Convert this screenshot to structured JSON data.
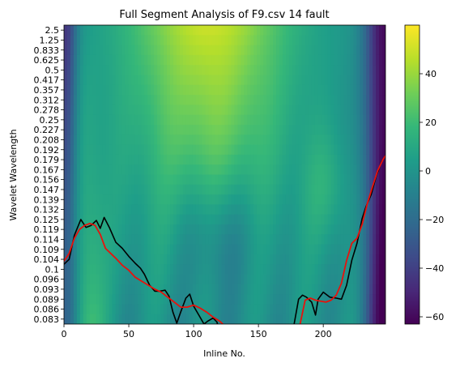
{
  "chart_data": {
    "type": "heatmap",
    "title": "Full Segment Analysis of F9.csv 14 fault",
    "xlabel": "Inline No.",
    "ylabel": "Wavelet Wavelength",
    "xlim": [
      0,
      248
    ],
    "x_ticks": [
      0,
      50,
      100,
      150,
      200
    ],
    "y_tick_labels": [
      "2.5",
      "1.25",
      "0.833",
      "0.625",
      "0.5",
      "0.417",
      "0.357",
      "0.312",
      "0.278",
      "0.25",
      "0.227",
      "0.208",
      "0.192",
      "0.179",
      "0.167",
      "0.156",
      "0.147",
      "0.139",
      "0.132",
      "0.125",
      "0.119",
      "0.114",
      "0.109",
      "0.104",
      "0.1",
      "0.096",
      "0.093",
      "0.089",
      "0.086",
      "0.083"
    ],
    "colorbar": {
      "ticks": [
        40,
        20,
        0,
        -20,
        -40,
        -60
      ],
      "range": [
        -63,
        60
      ],
      "colormap": "viridis"
    },
    "colors": {
      "black_line": "#000000",
      "red_line": "#e8120c"
    },
    "series": [
      {
        "type": "line",
        "color": "#000000",
        "x": [
          0,
          4,
          8,
          13,
          17,
          21,
          25,
          28,
          31,
          35,
          40,
          45,
          50,
          55,
          59,
          62,
          66,
          70,
          74,
          78,
          81,
          84,
          87,
          90,
          94,
          97,
          100,
          104,
          108,
          111,
          115,
          118,
          121,
          125,
          130,
          134,
          138,
          142,
          146,
          150,
          154,
          158,
          162,
          166,
          170,
          173,
          177,
          181,
          184,
          187,
          191,
          194,
          196,
          200,
          205,
          210,
          214,
          218,
          222,
          226,
          230,
          233,
          237,
          241,
          245,
          248
        ],
        "y": [
          23.5,
          23.0,
          20.6,
          19.0,
          19.8,
          19.6,
          19.1,
          19.9,
          18.8,
          19.8,
          21.3,
          21.9,
          22.7,
          23.4,
          23.9,
          24.5,
          25.6,
          26.2,
          26.2,
          26.1,
          26.7,
          28.3,
          29.4,
          28.3,
          26.9,
          26.5,
          27.7,
          28.6,
          29.5,
          29.2,
          28.9,
          29.3,
          30.8,
          31.5,
          31.9,
          32.4,
          32.5,
          32.5,
          32.2,
          31.9,
          32.1,
          31.8,
          31.5,
          30.9,
          31.9,
          32.2,
          29.9,
          27.0,
          26.6,
          26.8,
          27.3,
          28.6,
          27.0,
          26.3,
          26.8,
          26.9,
          27.0,
          25.6,
          23.1,
          21.4,
          18.9,
          17.7,
          16.5,
          14.6,
          13.2,
          12.6
        ],
        "smooth_series": false
      },
      {
        "type": "line",
        "color": "#e8120c",
        "x": [
          0,
          4,
          8,
          12,
          16,
          20,
          24,
          28,
          32,
          36,
          40,
          45,
          50,
          55,
          60,
          65,
          70,
          75,
          80,
          85,
          90,
          95,
          100,
          105,
          110,
          115,
          120,
          125,
          130,
          135,
          140,
          145,
          150,
          155,
          160,
          165,
          170,
          174,
          178,
          182,
          186,
          190,
          194,
          198,
          202,
          206,
          210,
          214,
          218,
          222,
          226,
          230,
          234,
          238,
          242,
          246,
          248
        ],
        "y": [
          23.2,
          22.4,
          20.9,
          20.0,
          19.6,
          19.4,
          19.6,
          20.5,
          21.9,
          22.4,
          22.9,
          23.6,
          24.1,
          24.8,
          25.2,
          25.6,
          26.0,
          26.3,
          26.8,
          27.3,
          27.8,
          27.8,
          27.6,
          27.9,
          28.3,
          28.8,
          29.2,
          29.8,
          30.4,
          31.0,
          31.6,
          32.2,
          32.4,
          32.3,
          31.9,
          31.3,
          30.9,
          31.7,
          31.6,
          29.6,
          27.1,
          26.9,
          27.1,
          27.2,
          27.3,
          27.1,
          26.6,
          25.4,
          23.1,
          21.4,
          20.9,
          19.5,
          17.4,
          15.7,
          14.1,
          13.0,
          12.6
        ]
      }
    ]
  }
}
